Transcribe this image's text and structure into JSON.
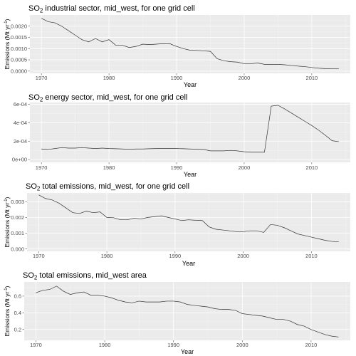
{
  "chart_data": [
    {
      "type": "line",
      "title": "SO2 industrial sector, mid_west, for one grid cell",
      "title_parts": {
        "pre": "SO",
        "sub": "2",
        "post": " industrial sector, mid_west, for one grid cell"
      },
      "xlabel": "Year",
      "ylabel": "Emissions (Mt yr-1)",
      "ylabel_parts": {
        "pre": "Emissions (Mt yr",
        "sup": "-1",
        "post": ")"
      },
      "xlim": [
        1968.3,
        2015.7
      ],
      "ylim": [
        -0.0001,
        0.0025
      ],
      "x_ticks": [
        1970,
        1980,
        1990,
        2000,
        2010
      ],
      "x_tick_labels": [
        "1970",
        "1980",
        "1990",
        "2000",
        "2010"
      ],
      "y_ticks": [
        0,
        0.0005,
        0.001,
        0.0015,
        0.002
      ],
      "y_tick_labels": [
        "0.0000",
        "0.0005",
        "0.0010",
        "0.0015",
        "0.0020"
      ],
      "grid": true,
      "x": [
        1970,
        1971,
        1972,
        1973,
        1974,
        1975,
        1976,
        1977,
        1978,
        1979,
        1980,
        1981,
        1982,
        1983,
        1984,
        1985,
        1986,
        1987,
        1988,
        1989,
        1990,
        1991,
        1992,
        1993,
        1994,
        1995,
        1996,
        1997,
        1998,
        1999,
        2000,
        2001,
        2002,
        2003,
        2004,
        2005,
        2006,
        2007,
        2008,
        2009,
        2010,
        2011,
        2012,
        2013,
        2014
      ],
      "y": [
        0.00235,
        0.0022,
        0.00215,
        0.002,
        0.0018,
        0.0016,
        0.0014,
        0.0013,
        0.00145,
        0.0013,
        0.0014,
        0.00115,
        0.00115,
        0.00105,
        0.0011,
        0.0012,
        0.00118,
        0.0012,
        0.00122,
        0.00122,
        0.0011,
        0.001,
        0.00093,
        0.00092,
        0.0009,
        0.00088,
        0.00055,
        0.00046,
        0.00042,
        0.0004,
        0.00033,
        0.00033,
        0.00036,
        0.0003,
        0.0003,
        0.0003,
        0.00028,
        0.00025,
        0.00022,
        0.0002,
        0.00016,
        0.00013,
        0.00011,
        0.0001,
        0.0001
      ]
    },
    {
      "type": "line",
      "title": "SO2 energy sector, mid_west, for one grid cell",
      "title_parts": {
        "pre": "SO",
        "sub": "2",
        "post": " energy sector, mid_west, for one grid cell"
      },
      "xlabel": "Year",
      "ylabel": "",
      "xlim": [
        1968.3,
        2015.7
      ],
      "ylim": [
        -3e-05,
        0.00062
      ],
      "x_ticks": [
        1970,
        1980,
        1990,
        2000,
        2010
      ],
      "x_tick_labels": [
        "1970",
        "1980",
        "1990",
        "2000",
        "2010"
      ],
      "y_ticks": [
        0,
        0.0002,
        0.0004,
        0.0006
      ],
      "y_tick_labels": [
        "0e+00",
        "2e-04",
        "4e-04",
        "6e-04"
      ],
      "grid": true,
      "x": [
        1970,
        1971,
        1972,
        1973,
        1974,
        1975,
        1976,
        1977,
        1978,
        1979,
        1980,
        1981,
        1982,
        1983,
        1984,
        1985,
        1986,
        1987,
        1988,
        1989,
        1990,
        1991,
        1992,
        1993,
        1994,
        1995,
        1996,
        1997,
        1998,
        1999,
        2000,
        2001,
        2002,
        2003,
        2004,
        2005,
        2006,
        2007,
        2008,
        2009,
        2010,
        2011,
        2012,
        2013,
        2014
      ],
      "y": [
        0.000115,
        0.00011,
        0.00012,
        0.00013,
        0.000125,
        0.000125,
        0.00013,
        0.000125,
        0.00012,
        0.000125,
        0.00012,
        0.000118,
        0.000115,
        0.000112,
        0.000115,
        0.000115,
        0.000118,
        0.00012,
        0.00012,
        0.00012,
        0.00012,
        0.000118,
        0.000115,
        0.000112,
        0.00011,
        9.5e-05,
        9.5e-05,
        9.5e-05,
        0.0001,
        9.5e-05,
        8.5e-05,
        8e-05,
        8e-05,
        8e-05,
        0.00058,
        0.00059,
        0.00055,
        0.000505,
        0.00046,
        0.000415,
        0.00037,
        0.00032,
        0.000265,
        0.000205,
        0.000195
      ]
    },
    {
      "type": "line",
      "title": "SO2 total emissions, mid_west, for one grid cell",
      "title_parts": {
        "pre": "SO",
        "sub": "2",
        "post": " total emissions, mid_west, for one grid cell"
      },
      "xlabel": "Year",
      "ylabel": "Emissions (Mt yr-1)",
      "ylabel_parts": {
        "pre": "Emissions (Mt yr",
        "sup": "-1",
        "post": ")"
      },
      "xlim": [
        1968.3,
        2015.7
      ],
      "ylim": [
        -0.00015,
        0.00355
      ],
      "x_ticks": [
        1970,
        1980,
        1990,
        2000,
        2010
      ],
      "x_tick_labels": [
        "1970",
        "1980",
        "1990",
        "2000",
        "2010"
      ],
      "y_ticks": [
        0,
        0.001,
        0.002,
        0.003
      ],
      "y_tick_labels": [
        "0.000",
        "0.001",
        "0.002",
        "0.003"
      ],
      "grid": true,
      "x": [
        1970,
        1971,
        1972,
        1973,
        1974,
        1975,
        1976,
        1977,
        1978,
        1979,
        1980,
        1981,
        1982,
        1983,
        1984,
        1985,
        1986,
        1987,
        1988,
        1989,
        1990,
        1991,
        1992,
        1993,
        1994,
        1995,
        1996,
        1997,
        1998,
        1999,
        2000,
        2001,
        2002,
        2003,
        2004,
        2005,
        2006,
        2007,
        2008,
        2009,
        2010,
        2011,
        2012,
        2013,
        2014
      ],
      "y": [
        0.00343,
        0.0032,
        0.0031,
        0.0029,
        0.0026,
        0.0023,
        0.00225,
        0.0024,
        0.0023,
        0.00235,
        0.002,
        0.00198,
        0.00185,
        0.00185,
        0.00195,
        0.0019,
        0.002,
        0.00205,
        0.0021,
        0.002,
        0.0019,
        0.0018,
        0.00185,
        0.00182,
        0.0018,
        0.0014,
        0.00125,
        0.0012,
        0.00115,
        0.0011,
        0.0011,
        0.00115,
        0.00115,
        0.00105,
        0.00155,
        0.0015,
        0.00135,
        0.00115,
        0.00095,
        0.00085,
        0.00075,
        0.00065,
        0.00055,
        0.00048,
        0.00045
      ]
    },
    {
      "type": "line",
      "title": "SO2 total emissions, mid_west area",
      "title_parts": {
        "pre": "SO",
        "sub": "2",
        "post": " total emissions, mid_west area"
      },
      "xlabel": "Year",
      "ylabel": "Emissions (Mt yr-1)",
      "ylabel_parts": {
        "pre": "Emissions (Mt yr",
        "sup": "-1",
        "post": ")"
      },
      "xlim": [
        1968.3,
        2015.7
      ],
      "ylim": [
        0.07,
        0.77
      ],
      "x_ticks": [
        1970,
        1980,
        1990,
        2000,
        2010
      ],
      "x_tick_labels": [
        "1970",
        "1980",
        "1990",
        "2000",
        "2010"
      ],
      "y_ticks": [
        0.2,
        0.4,
        0.6
      ],
      "y_tick_labels": [
        "0.2",
        "0.4",
        "0.6"
      ],
      "grid": true,
      "x": [
        1970,
        1971,
        1972,
        1973,
        1974,
        1975,
        1976,
        1977,
        1978,
        1979,
        1980,
        1981,
        1982,
        1983,
        1984,
        1985,
        1986,
        1987,
        1988,
        1989,
        1990,
        1991,
        1992,
        1993,
        1994,
        1995,
        1996,
        1997,
        1998,
        1999,
        2000,
        2001,
        2002,
        2003,
        2004,
        2005,
        2006,
        2007,
        2008,
        2009,
        2010,
        2011,
        2012,
        2013,
        2014
      ],
      "y": [
        0.64,
        0.67,
        0.68,
        0.72,
        0.66,
        0.62,
        0.64,
        0.65,
        0.61,
        0.61,
        0.6,
        0.58,
        0.55,
        0.53,
        0.52,
        0.54,
        0.53,
        0.53,
        0.53,
        0.54,
        0.54,
        0.53,
        0.5,
        0.49,
        0.48,
        0.47,
        0.45,
        0.44,
        0.44,
        0.43,
        0.39,
        0.38,
        0.37,
        0.36,
        0.34,
        0.32,
        0.32,
        0.3,
        0.26,
        0.24,
        0.2,
        0.17,
        0.14,
        0.12,
        0.11
      ]
    }
  ]
}
